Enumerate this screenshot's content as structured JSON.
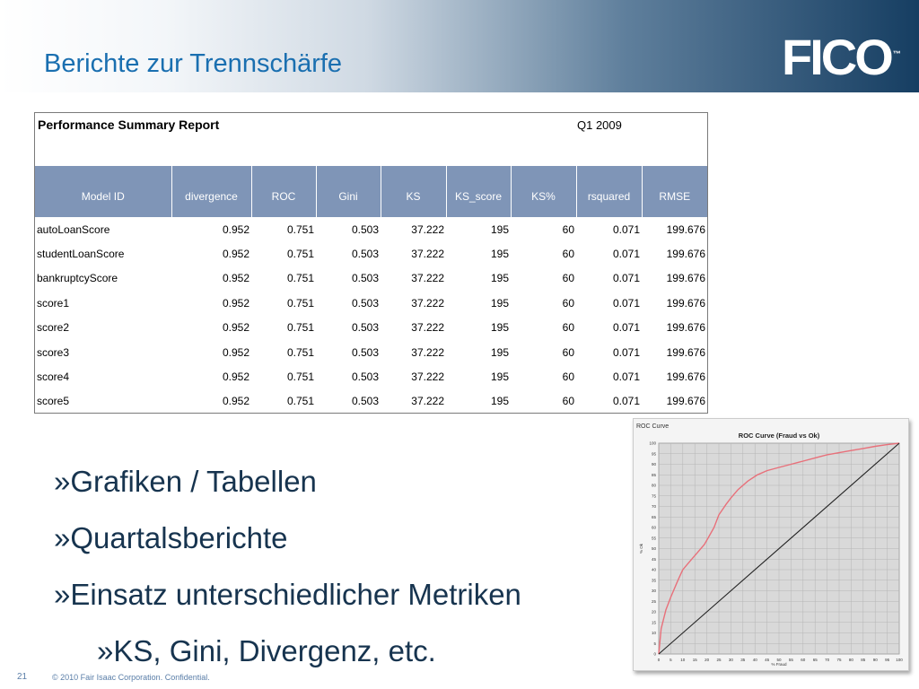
{
  "slide": {
    "title": "Berichte zur Trennschärfe",
    "logo_text": "FICO",
    "logo_tm": "™",
    "page_number": "21",
    "copyright": "© 2010 Fair Isaac Corporation. Confidential."
  },
  "report": {
    "title": "Performance Summary Report",
    "period": "Q1 2009",
    "columns": [
      "Model ID",
      "divergence",
      "ROC",
      "Gini",
      "KS",
      "KS_score",
      "KS%",
      "rsquared",
      "RMSE"
    ],
    "rows": [
      [
        "autoLoanScore",
        "0.952",
        "0.751",
        "0.503",
        "37.222",
        "195",
        "60",
        "0.071",
        "199.676"
      ],
      [
        "studentLoanScore",
        "0.952",
        "0.751",
        "0.503",
        "37.222",
        "195",
        "60",
        "0.071",
        "199.676"
      ],
      [
        "bankruptcyScore",
        "0.952",
        "0.751",
        "0.503",
        "37.222",
        "195",
        "60",
        "0.071",
        "199.676"
      ],
      [
        "score1",
        "0.952",
        "0.751",
        "0.503",
        "37.222",
        "195",
        "60",
        "0.071",
        "199.676"
      ],
      [
        "score2",
        "0.952",
        "0.751",
        "0.503",
        "37.222",
        "195",
        "60",
        "0.071",
        "199.676"
      ],
      [
        "score3",
        "0.952",
        "0.751",
        "0.503",
        "37.222",
        "195",
        "60",
        "0.071",
        "199.676"
      ],
      [
        "score4",
        "0.952",
        "0.751",
        "0.503",
        "37.222",
        "195",
        "60",
        "0.071",
        "199.676"
      ],
      [
        "score5",
        "0.952",
        "0.751",
        "0.503",
        "37.222",
        "195",
        "60",
        "0.071",
        "199.676"
      ]
    ]
  },
  "bullets": [
    "»Grafiken / Tabellen",
    "»Quartalsberichte",
    "»Einsatz unterschiedlicher Metriken",
    "»KS, Gini, Divergenz, etc."
  ],
  "chart_data": {
    "type": "line",
    "window_label": "ROC Curve",
    "title": "ROC Curve (Fraud vs Ok)",
    "xlabel": "% Fraud",
    "ylabel": "% Ok",
    "xlim": [
      0,
      100
    ],
    "ylim": [
      0,
      100
    ],
    "x_ticks": [
      0,
      5,
      10,
      15,
      20,
      25,
      30,
      35,
      40,
      45,
      50,
      55,
      60,
      65,
      70,
      75,
      80,
      85,
      90,
      95,
      100
    ],
    "y_ticks": [
      0,
      5,
      10,
      15,
      20,
      25,
      30,
      35,
      40,
      45,
      50,
      55,
      60,
      65,
      70,
      75,
      80,
      85,
      90,
      95,
      100
    ],
    "grid": true,
    "series": [
      {
        "color": "#e8707a",
        "x": [
          0,
          1,
          3,
          5,
          8,
          10,
          13,
          16,
          19,
          21,
          23,
          25,
          28,
          30,
          33,
          37,
          41,
          45,
          50,
          55,
          60,
          65,
          70,
          75,
          80,
          85,
          90,
          95,
          100
        ],
        "y": [
          0,
          12,
          21,
          27,
          35,
          40,
          44,
          48,
          52,
          56,
          60,
          66,
          71,
          74,
          78,
          82,
          85,
          87,
          88.5,
          90,
          91.5,
          93,
          94.5,
          95.5,
          96.5,
          97.5,
          98.5,
          99.3,
          100
        ]
      },
      {
        "color": "#222222",
        "x": [
          0,
          100
        ],
        "y": [
          0,
          100
        ]
      }
    ]
  },
  "colors": {
    "title": "#1a6fb0",
    "header_dark": "#163e62",
    "table_header": "#7f95b7",
    "bullet_text": "#17344f"
  }
}
